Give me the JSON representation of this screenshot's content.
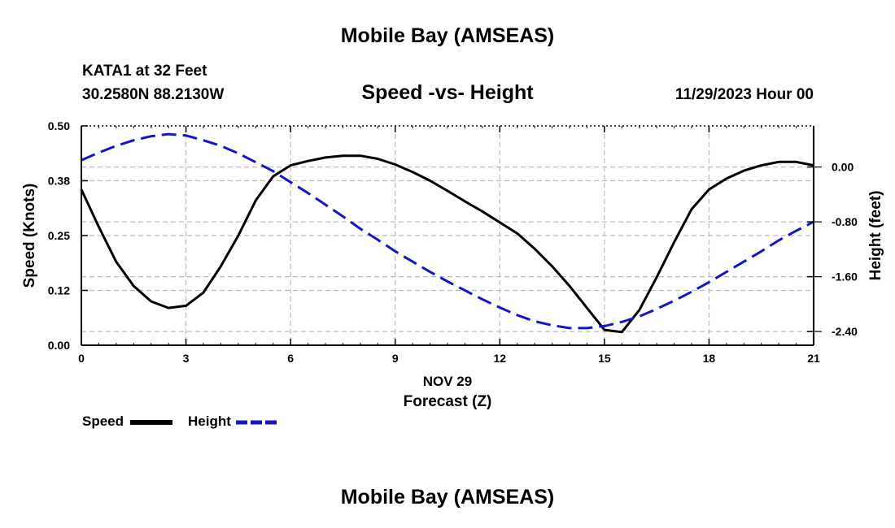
{
  "title": "Mobile Bay (AMSEAS)",
  "footer_title": "Mobile Bay (AMSEAS)",
  "station": "KATA1 at 32 Feet",
  "coordinates": "30.2580N  88.2130W",
  "subtitle": "Speed -vs- Height",
  "datetime": "11/29/2023 Hour 00",
  "legend": {
    "speed_label": "Speed",
    "height_label": "Height"
  },
  "colors": {
    "speed": "#000000",
    "height": "#1515c8",
    "grid": "#bbbbbb"
  },
  "chart_data": {
    "type": "line",
    "title": "Speed -vs- Height",
    "xlabel_date": "NOV 29",
    "xlabel": "Forecast (Z)",
    "ylabel_left": "Speed (Knots)",
    "ylabel_right": "Height (feet)",
    "xlim": [
      0,
      21
    ],
    "ylim_left": [
      0,
      0.5
    ],
    "ylim_right": [
      -2.6,
      0.6
    ],
    "x_ticks": [
      "0",
      "3",
      "6",
      "9",
      "12",
      "15",
      "18",
      "21"
    ],
    "x_tick_values": [
      0,
      3,
      6,
      9,
      12,
      15,
      18,
      21
    ],
    "y_left_ticks": [
      "0.00",
      "0.12",
      "0.25",
      "0.38",
      "0.50"
    ],
    "y_left_tick_values": [
      0.0,
      0.125,
      0.25,
      0.375,
      0.5
    ],
    "y_right_ticks": [
      "0.00",
      "-0.80",
      "-1.60",
      "-2.40"
    ],
    "y_right_tick_values": [
      0.0,
      -0.8,
      -1.6,
      -2.4
    ],
    "grid": true,
    "series": [
      {
        "name": "Speed",
        "axis": "left",
        "style": "solid",
        "x": [
          0,
          0.5,
          1,
          1.5,
          2,
          2.5,
          3,
          3.5,
          4,
          4.5,
          5,
          5.5,
          6,
          6.5,
          7,
          7.5,
          8,
          8.5,
          9,
          9.5,
          10,
          10.5,
          11,
          11.5,
          12,
          12.5,
          13,
          13.5,
          14,
          14.5,
          15,
          15.5,
          16,
          16.5,
          17,
          17.5,
          18,
          18.5,
          19,
          19.5,
          20,
          20.5,
          21
        ],
        "values": [
          0.355,
          0.27,
          0.19,
          0.135,
          0.1,
          0.085,
          0.09,
          0.12,
          0.18,
          0.25,
          0.33,
          0.385,
          0.41,
          0.42,
          0.428,
          0.432,
          0.432,
          0.425,
          0.412,
          0.395,
          0.375,
          0.352,
          0.328,
          0.305,
          0.28,
          0.255,
          0.22,
          0.18,
          0.135,
          0.085,
          0.035,
          0.03,
          0.08,
          0.155,
          0.235,
          0.31,
          0.355,
          0.38,
          0.398,
          0.41,
          0.418,
          0.418,
          0.41
        ]
      },
      {
        "name": "Height",
        "axis": "right",
        "style": "dashed",
        "x": [
          0,
          0.5,
          1,
          1.5,
          2,
          2.5,
          3,
          3.5,
          4,
          4.5,
          5,
          5.5,
          6,
          6.5,
          7,
          7.5,
          8,
          8.5,
          9,
          9.5,
          10,
          10.5,
          11,
          11.5,
          12,
          12.5,
          13,
          13.5,
          14,
          14.5,
          15,
          15.5,
          16,
          16.5,
          17,
          17.5,
          18,
          18.5,
          19,
          19.5,
          20,
          20.5,
          21
        ],
        "values": [
          0.1,
          0.21,
          0.31,
          0.39,
          0.45,
          0.48,
          0.46,
          0.39,
          0.31,
          0.2,
          0.07,
          -0.06,
          -0.22,
          -0.38,
          -0.55,
          -0.72,
          -0.9,
          -1.06,
          -1.23,
          -1.38,
          -1.53,
          -1.67,
          -1.8,
          -1.93,
          -2.05,
          -2.16,
          -2.25,
          -2.31,
          -2.35,
          -2.35,
          -2.32,
          -2.26,
          -2.18,
          -2.07,
          -1.95,
          -1.82,
          -1.68,
          -1.53,
          -1.38,
          -1.23,
          -1.07,
          -0.93,
          -0.8
        ]
      }
    ]
  }
}
